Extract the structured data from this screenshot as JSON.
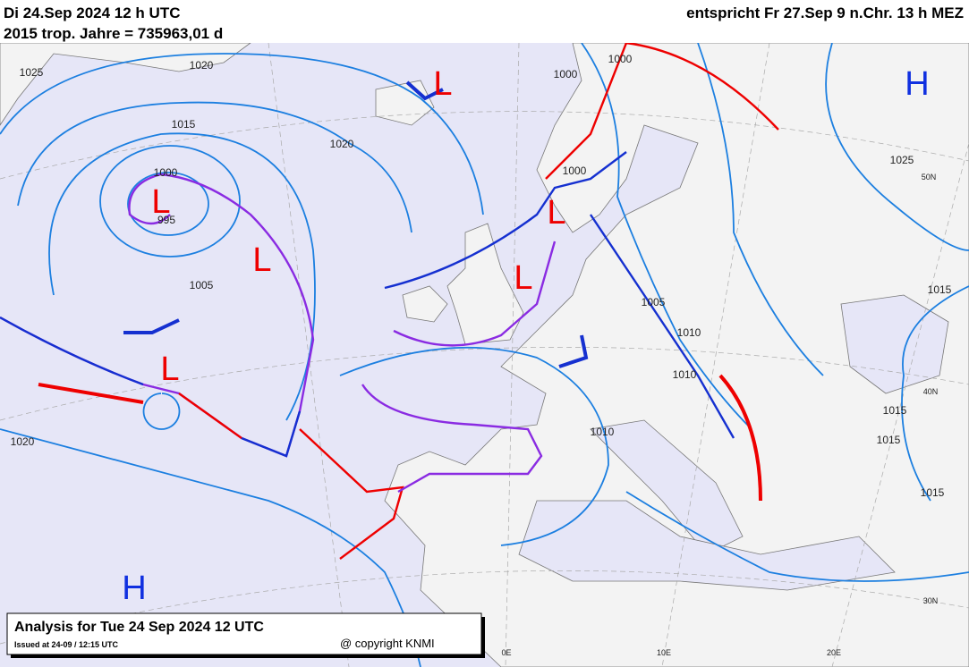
{
  "header": {
    "title_left": "Di 24.Sep 2024 12 h UTC",
    "subtitle_left": "2015 trop. Jahre = 735963,01 d",
    "title_right": "entspricht Fr 27.Sep 9 n.Chr. 13 h MEZ"
  },
  "map": {
    "isobar_labels": [
      "1025",
      "1020",
      "1015",
      "1020",
      "1000",
      "995",
      "1005",
      "1000",
      "1000",
      "1000",
      "1025",
      "1005",
      "1010",
      "1010",
      "1015",
      "1015",
      "1015",
      "1015",
      "1010",
      "1020"
    ],
    "pressure_systems": [
      "H",
      "L",
      "L",
      "L",
      "L",
      "L",
      "L",
      "H"
    ],
    "grid_labels": [
      "50N",
      "40N",
      "30N",
      "0E",
      "10E",
      "20E"
    ]
  },
  "footer": {
    "title": "Analysis for Tue 24 Sep 2024 12 UTC",
    "issued": "Issued at 24-09 / 12:15 UTC",
    "copyright": "@ copyright KNMI"
  }
}
